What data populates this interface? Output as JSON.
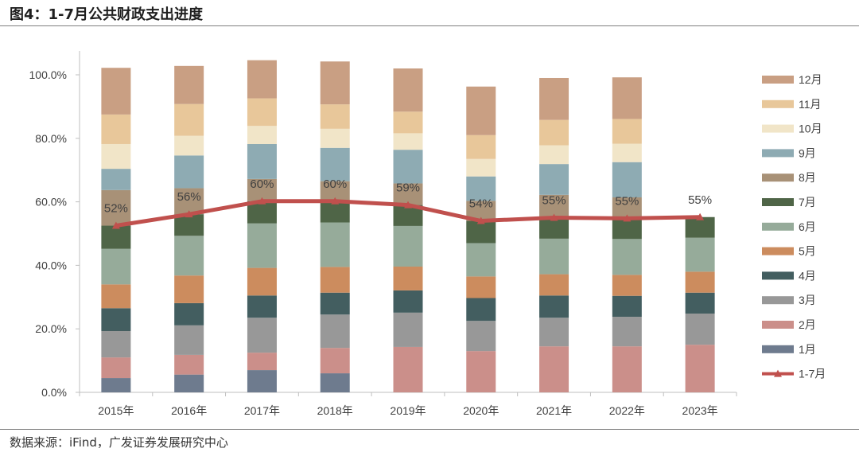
{
  "figure_title": "图4：1-7月公共财政支出进度",
  "source": "数据来源：iFind，广发证券发展研究中心",
  "colors": {
    "1月": "#6e7b8e",
    "2月": "#cb8f8a",
    "3月": "#989898",
    "4月": "#435e60",
    "5月": "#cc8c5e",
    "6月": "#96ab9a",
    "7月": "#4f6547",
    "8月": "#a89177",
    "9月": "#8eabb3",
    "10月": "#f1e5c8",
    "11月": "#e8c79a",
    "12月": "#c99f83",
    "1-7月": "#c0504d"
  },
  "chart_data": {
    "type": "bar",
    "stacked": true,
    "title": "",
    "xlabel": "",
    "ylabel": "",
    "ylim": [
      0,
      1.0
    ],
    "yticks": [
      "0.0%",
      "20.0%",
      "40.0%",
      "60.0%",
      "80.0%",
      "100.0%"
    ],
    "grid": false,
    "legend_position": "right",
    "categories": [
      "2015年",
      "2016年",
      "2017年",
      "2018年",
      "2019年",
      "2020年",
      "2021年",
      "2022年",
      "2023年"
    ],
    "series": [
      {
        "name": "1月",
        "values": [
          0.045,
          0.056,
          0.07,
          0.06,
          0.0,
          0.0,
          0.0,
          0.0,
          0.0
        ]
      },
      {
        "name": "2月",
        "values": [
          0.065,
          0.062,
          0.055,
          0.08,
          0.143,
          0.13,
          0.145,
          0.145,
          0.15
        ]
      },
      {
        "name": "3月",
        "values": [
          0.083,
          0.093,
          0.11,
          0.105,
          0.108,
          0.095,
          0.09,
          0.093,
          0.098
        ]
      },
      {
        "name": "4月",
        "values": [
          0.072,
          0.07,
          0.07,
          0.069,
          0.07,
          0.072,
          0.07,
          0.066,
          0.066
        ]
      },
      {
        "name": "5月",
        "values": [
          0.075,
          0.087,
          0.087,
          0.081,
          0.075,
          0.068,
          0.067,
          0.066,
          0.066
        ]
      },
      {
        "name": "6月",
        "values": [
          0.112,
          0.125,
          0.14,
          0.14,
          0.128,
          0.105,
          0.112,
          0.113,
          0.107
        ]
      },
      {
        "name": "7月",
        "values": [
          0.073,
          0.068,
          0.07,
          0.067,
          0.066,
          0.07,
          0.066,
          0.067,
          0.065
        ]
      },
      {
        "name": "8月",
        "values": [
          0.112,
          0.082,
          0.07,
          0.063,
          0.068,
          0.063,
          0.072,
          0.064,
          0.0
        ]
      },
      {
        "name": "9月",
        "values": [
          0.067,
          0.103,
          0.11,
          0.105,
          0.106,
          0.077,
          0.097,
          0.111,
          0.0
        ]
      },
      {
        "name": "10月",
        "values": [
          0.078,
          0.062,
          0.057,
          0.06,
          0.052,
          0.055,
          0.059,
          0.058,
          0.0
        ]
      },
      {
        "name": "11月",
        "values": [
          0.093,
          0.1,
          0.087,
          0.077,
          0.068,
          0.075,
          0.08,
          0.078,
          0.0
        ]
      },
      {
        "name": "12月",
        "values": [
          0.147,
          0.12,
          0.12,
          0.135,
          0.136,
          0.153,
          0.132,
          0.131,
          0.0
        ]
      }
    ],
    "line": {
      "name": "1-7月",
      "values": [
        0.525,
        0.561,
        0.602,
        0.602,
        0.59,
        0.54,
        0.55,
        0.548,
        0.552
      ],
      "labels": [
        "52%",
        "56%",
        "60%",
        "60%",
        "59%",
        "54%",
        "55%",
        "55%",
        "55%"
      ]
    }
  }
}
